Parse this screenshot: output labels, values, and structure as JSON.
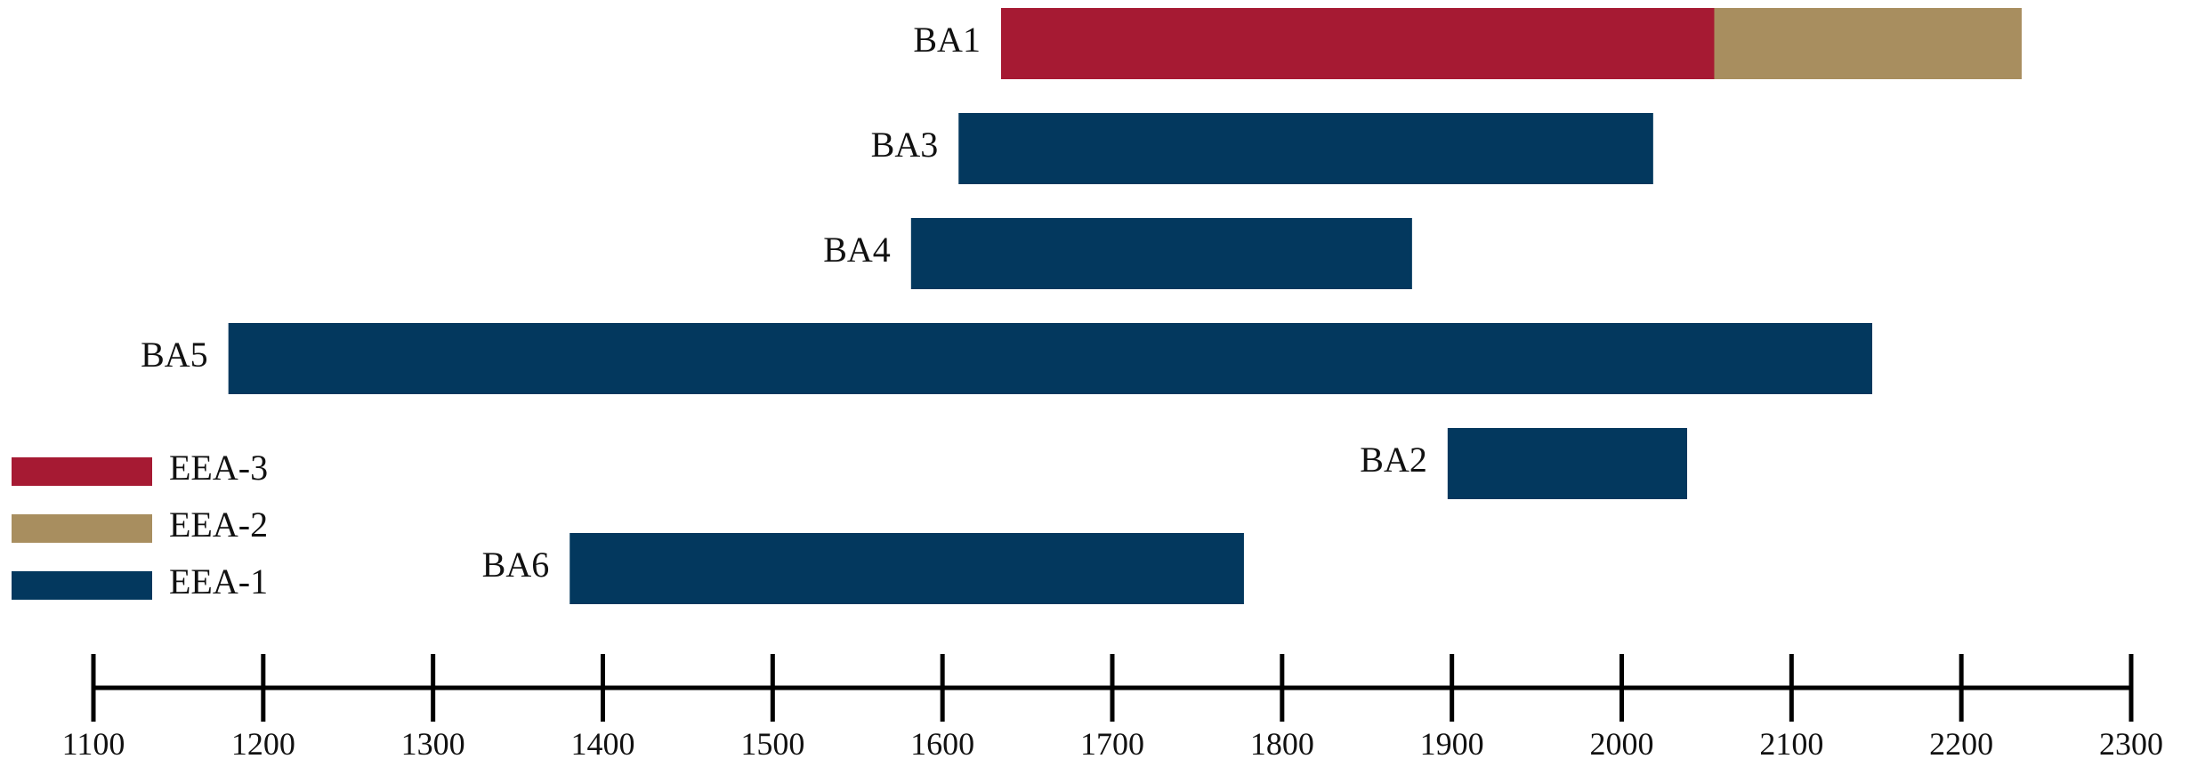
{
  "chart_data": {
    "type": "bar",
    "orientation": "horizontal",
    "stacked": true,
    "x_axis": {
      "range": [
        1100,
        2300
      ],
      "ticks": [
        1100,
        1200,
        1300,
        1400,
        1500,
        1600,
        1700,
        1800,
        1900,
        2000,
        2100,
        2200,
        2300
      ]
    },
    "legend": {
      "position": "left",
      "entries": [
        "EEA-3",
        "EEA-2",
        "EEA-1"
      ]
    },
    "series_colors": {
      "EEA-3": "#A61A33",
      "EEA-2": "#A88E5F",
      "EEA-1": "#03385E"
    },
    "bars": [
      {
        "label": "BA1",
        "segments": [
          {
            "series": "EEA-3",
            "start": 1635,
            "end": 2055
          },
          {
            "series": "EEA-2",
            "start": 2055,
            "end": 2235
          }
        ]
      },
      {
        "label": "BA3",
        "segments": [
          {
            "series": "EEA-1",
            "start": 1610,
            "end": 2018
          }
        ]
      },
      {
        "label": "BA4",
        "segments": [
          {
            "series": "EEA-1",
            "start": 1582,
            "end": 1876
          }
        ]
      },
      {
        "label": "BA5",
        "segments": [
          {
            "series": "EEA-1",
            "start": 1180,
            "end": 2147
          }
        ]
      },
      {
        "label": "BA2",
        "segments": [
          {
            "series": "EEA-1",
            "start": 1898,
            "end": 2038
          }
        ]
      },
      {
        "label": "BA6",
        "segments": [
          {
            "series": "EEA-1",
            "start": 1381,
            "end": 1777
          }
        ]
      }
    ]
  }
}
